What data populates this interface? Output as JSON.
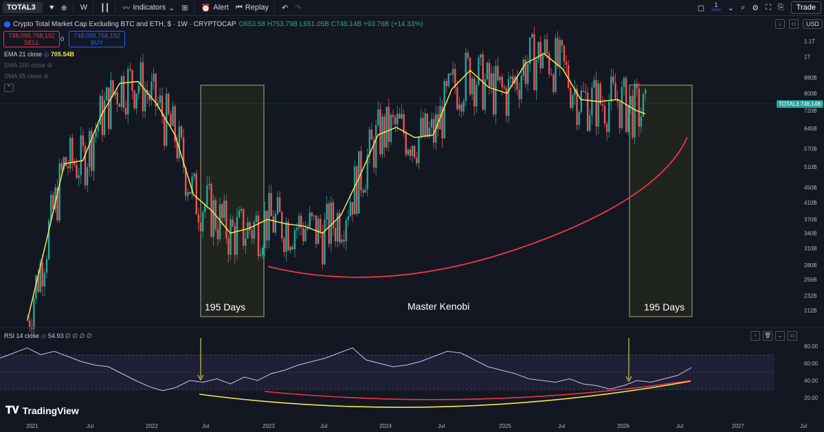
{
  "toolbar": {
    "symbol": "TOTAL3",
    "interval": "W",
    "indicators_label": "Indicators",
    "alert_label": "Alert",
    "replay_label": "Replay",
    "save_count": "1",
    "save_label": "Save",
    "trade_label": "Trade"
  },
  "legend": {
    "title": "Crypto Total Market Cap Excluding BTC and ETH, $ · 1W · CRYPTOCAP",
    "ohlc": "O653.58 H753.79B L651.05B C748.14B +93.76B (+14.33%)",
    "sell_price": "748,099,758,192",
    "sell_label": "SELL",
    "spread": "0",
    "buy_price": "748,099,758,192",
    "buy_label": "BUY"
  },
  "indicators": {
    "ema": "EMA 21 close",
    "ema_value": "705.54B",
    "sma200": "SMA 200 close",
    "sma55": "SMA 55 close"
  },
  "currency": "USD",
  "last_price_tag": {
    "symbol": "TOTAL3",
    "value": "748.14B"
  },
  "colors": {
    "background": "#131722",
    "up": "#26a69a",
    "down": "#ef5350",
    "ema": "#f5e94e",
    "arc": "#f23645",
    "rsi": "#c9c4f0",
    "rsi_fill_overbought": "#2e6b3f",
    "box": "#c8c89a",
    "box_fill": "#2c2f1e"
  },
  "chart_data": [
    {
      "type": "candlestick",
      "title": "Crypto Total Market Cap Excluding BTC and ETH",
      "y_axis": {
        "scale": "log",
        "ticks": [
          "1.1T",
          "1T",
          "880B",
          "800B",
          "720B",
          "645B",
          "570B",
          "510B",
          "450B",
          "410B",
          "370B",
          "340B",
          "310B",
          "280B",
          "256B",
          "232B",
          "212B"
        ]
      },
      "x_axis": {
        "ticks": [
          "2021",
          "Jul",
          "2022",
          "Jul",
          "2023",
          "Jul",
          "2024",
          "Jul",
          "2025",
          "Jul",
          "2026",
          "Jul",
          "2027",
          "Jul"
        ]
      },
      "series": [
        {
          "name": "EMA 21 close",
          "points": [
            [
              "2021-01",
              200
            ],
            [
              "2021-03",
              320
            ],
            [
              "2021-05",
              520
            ],
            [
              "2021-07",
              530
            ],
            [
              "2021-09",
              700
            ],
            [
              "2021-11",
              850
            ],
            [
              "2022-01",
              860
            ],
            [
              "2022-03",
              750
            ],
            [
              "2022-05",
              620
            ],
            [
              "2022-07",
              430
            ],
            [
              "2022-09",
              390
            ],
            [
              "2022-11",
              340
            ],
            [
              "2023-01",
              350
            ],
            [
              "2023-03",
              370
            ],
            [
              "2023-05",
              360
            ],
            [
              "2023-07",
              355
            ],
            [
              "2023-09",
              340
            ],
            [
              "2023-11",
              380
            ],
            [
              "2024-01",
              480
            ],
            [
              "2024-03",
              620
            ],
            [
              "2024-05",
              650
            ],
            [
              "2024-07",
              610
            ],
            [
              "2024-09",
              620
            ],
            [
              "2024-11",
              820
            ],
            [
              "2025-01",
              920
            ],
            [
              "2025-03",
              830
            ],
            [
              "2025-05",
              800
            ],
            [
              "2025-07",
              960
            ],
            [
              "2025-09",
              1020
            ],
            [
              "2025-11",
              930
            ],
            [
              "2026-01",
              770
            ],
            [
              "2026-03",
              760
            ],
            [
              "2026-05",
              770
            ],
            [
              "2026-07",
              720
            ],
            [
              "2026-08",
              705.54
            ]
          ]
        }
      ],
      "annotations": [
        "195 Days",
        "Master Kenobi",
        "195 Days"
      ],
      "last_value": "748.14B"
    },
    {
      "type": "line",
      "title": "RSI 14 close",
      "value": 54.93,
      "extra_values": [
        "∅",
        "∅",
        "∅",
        "∅"
      ],
      "y_axis": {
        "ticks": [
          80.0,
          60.0,
          40.0,
          20.0
        ]
      },
      "bands": [
        30,
        70
      ],
      "series": [
        {
          "name": "RSI 14 close",
          "values": [
            66,
            72,
            78,
            70,
            74,
            68,
            62,
            58,
            56,
            48,
            40,
            33,
            28,
            32,
            40,
            38,
            42,
            36,
            44,
            40,
            48,
            52,
            58,
            62,
            66,
            72,
            78,
            64,
            60,
            56,
            58,
            62,
            68,
            74,
            72,
            64,
            56,
            52,
            48,
            42,
            40,
            38,
            42,
            36,
            34,
            30,
            34,
            40,
            38,
            42,
            46,
            54.93
          ]
        }
      ]
    }
  ]
}
